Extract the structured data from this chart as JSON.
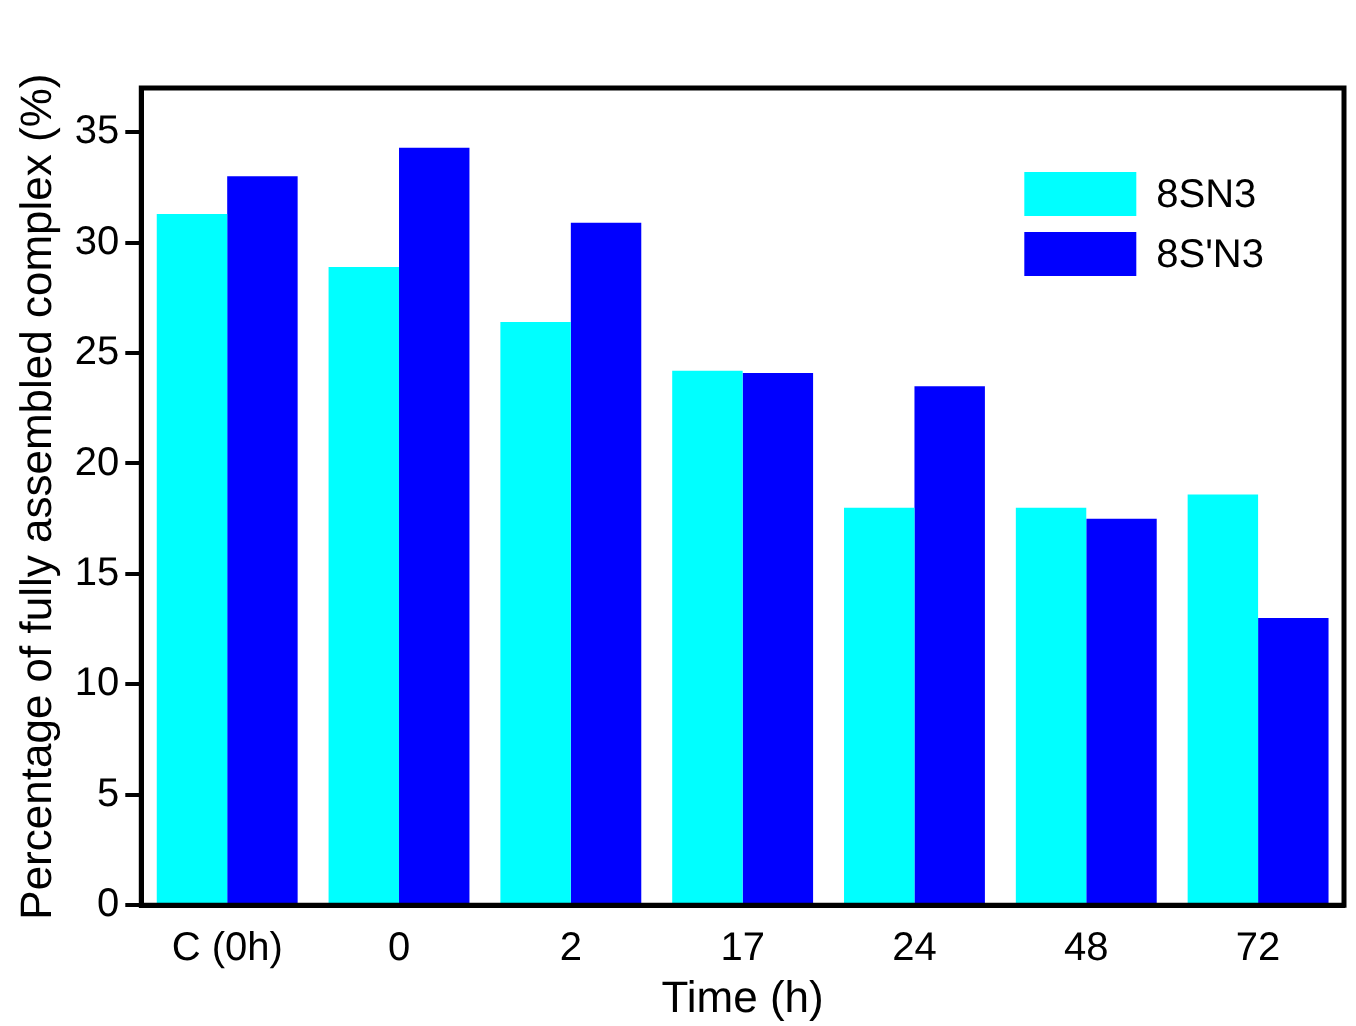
{
  "chart_data": {
    "type": "bar",
    "xlabel": "Time (h)",
    "ylabel": "Percentage of fully assembled complex (%)",
    "categories": [
      "C (0h)",
      "0",
      "2",
      "17",
      "24",
      "48",
      "72"
    ],
    "series": [
      {
        "name": "8SN3",
        "color": "#00ffff",
        "values": [
          31.3,
          28.9,
          26.4,
          24.2,
          18.0,
          18.0,
          18.6
        ]
      },
      {
        "name": "8S'N3",
        "color": "#0000ff",
        "values": [
          33.0,
          34.3,
          30.9,
          24.1,
          23.5,
          17.5,
          13.0
        ]
      }
    ],
    "ylim": [
      0,
      37
    ],
    "yticks": [
      0,
      5,
      10,
      15,
      20,
      25,
      30,
      35
    ],
    "grid": false,
    "legend": "top right"
  }
}
